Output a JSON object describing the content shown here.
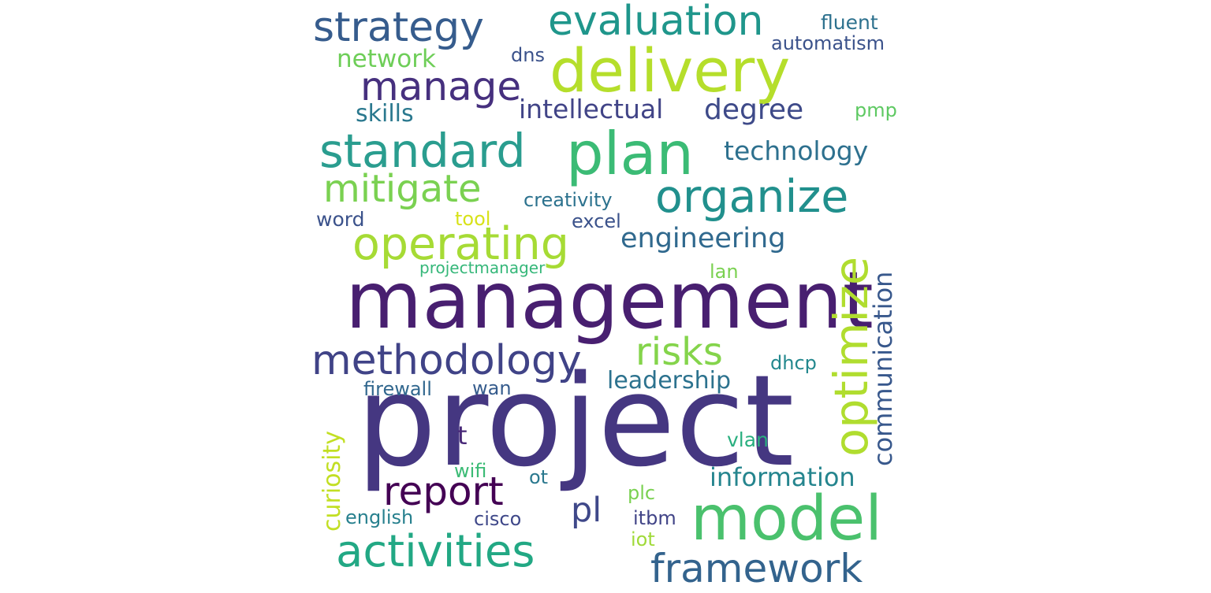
{
  "words": [
    {
      "text": "project",
      "color": "#453781"
    },
    {
      "text": "management",
      "color": "#481F70"
    },
    {
      "text": "delivery",
      "color": "#B5DE2B"
    },
    {
      "text": "plan",
      "color": "#3BBB75"
    },
    {
      "text": "model",
      "color": "#4AC16D"
    },
    {
      "text": "organize",
      "color": "#21908D"
    },
    {
      "text": "standard",
      "color": "#2A9D8F"
    },
    {
      "text": "operating",
      "color": "#A6DB35"
    },
    {
      "text": "optimize",
      "color": "#B0DD2F"
    },
    {
      "text": "activities",
      "color": "#22A884"
    },
    {
      "text": "methodology",
      "color": "#404387"
    },
    {
      "text": "evaluation",
      "color": "#1F968B"
    },
    {
      "text": "strategy",
      "color": "#365C8D"
    },
    {
      "text": "manage",
      "color": "#46307E"
    },
    {
      "text": "report",
      "color": "#440154"
    },
    {
      "text": "framework",
      "color": "#33638D"
    },
    {
      "text": "mitigate",
      "color": "#7AD151"
    },
    {
      "text": "risks",
      "color": "#84D44B"
    },
    {
      "text": "engineering",
      "color": "#30698E"
    },
    {
      "text": "pl",
      "color": "#3F4889"
    },
    {
      "text": "information",
      "color": "#25858E"
    },
    {
      "text": "communication",
      "color": "#38588C"
    },
    {
      "text": "technology",
      "color": "#2D708E"
    },
    {
      "text": "intellectual",
      "color": "#414487"
    },
    {
      "text": "degree",
      "color": "#3E4A89"
    },
    {
      "text": "leadership",
      "color": "#2C728E"
    },
    {
      "text": "network",
      "color": "#6ECE58"
    },
    {
      "text": "skills",
      "color": "#2A788E"
    },
    {
      "text": "curiosity",
      "color": "#C2DF23"
    },
    {
      "text": "t",
      "color": "#482878"
    },
    {
      "text": "creativity",
      "color": "#2C728E"
    },
    {
      "text": "automatism",
      "color": "#3B528B"
    },
    {
      "text": "fluent",
      "color": "#2D718E"
    },
    {
      "text": "dns",
      "color": "#3B528B"
    },
    {
      "text": "pmp",
      "color": "#5EC962"
    },
    {
      "text": "word",
      "color": "#3B528B"
    },
    {
      "text": "tool",
      "color": "#D8E219"
    },
    {
      "text": "excel",
      "color": "#3B528B"
    },
    {
      "text": "projectmanager",
      "color": "#35B779"
    },
    {
      "text": "lan",
      "color": "#7AD151"
    },
    {
      "text": "dhcp",
      "color": "#23888E"
    },
    {
      "text": "firewall",
      "color": "#31678E"
    },
    {
      "text": "wan",
      "color": "#365C8D"
    },
    {
      "text": "vlan",
      "color": "#29AF7F"
    },
    {
      "text": "wifi",
      "color": "#3BBB75"
    },
    {
      "text": "ot",
      "color": "#2A788E"
    },
    {
      "text": "english",
      "color": "#27808E"
    },
    {
      "text": "cisco",
      "color": "#3F4889"
    },
    {
      "text": "plc",
      "color": "#7AD151"
    },
    {
      "text": "itbm",
      "color": "#414487"
    },
    {
      "text": "iot",
      "color": "#A0DA39"
    }
  ]
}
